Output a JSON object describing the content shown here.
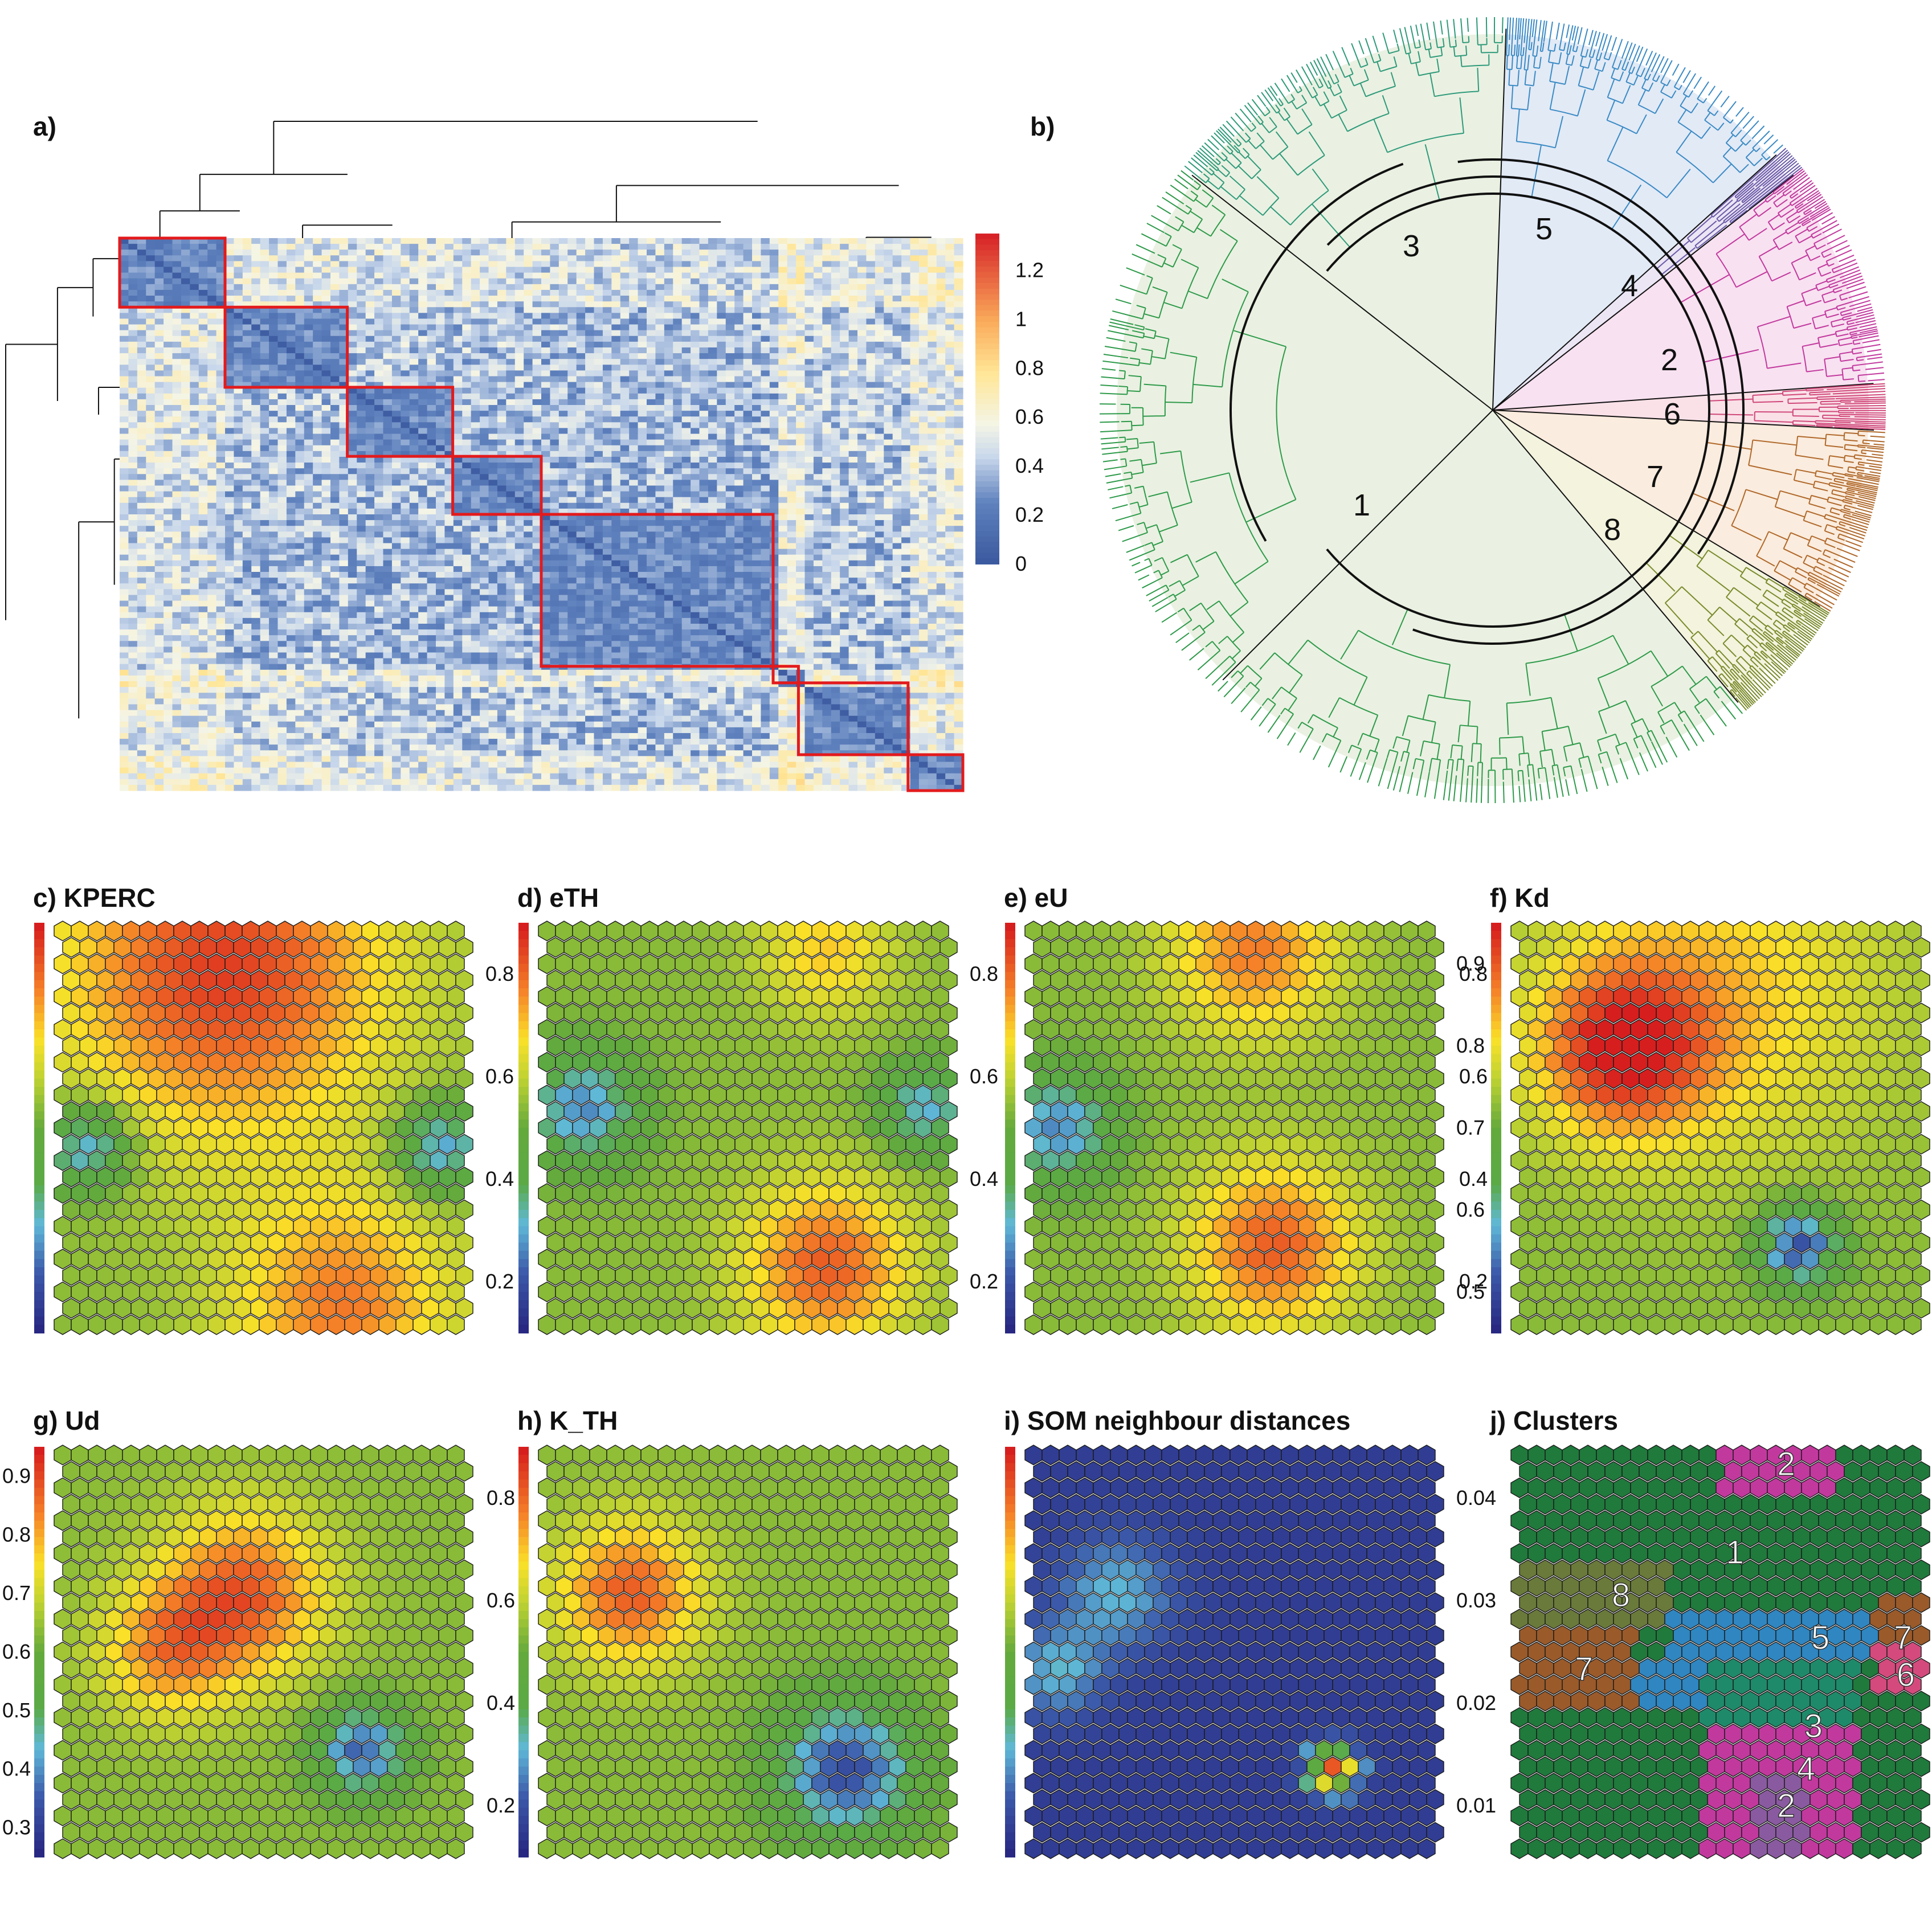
{
  "panels": {
    "a": {
      "label": "a)"
    },
    "b": {
      "label": "b)"
    },
    "c": {
      "label": "c) KPERC"
    },
    "d": {
      "label": "d) eTH"
    },
    "e": {
      "label": "e) eU"
    },
    "f": {
      "label": "f) Kd"
    },
    "g": {
      "label": "g) Ud"
    },
    "h": {
      "label": "h) K_TH"
    },
    "i": {
      "label": "i) SOM neighbour distances"
    },
    "j": {
      "label": "j) Clusters"
    }
  },
  "chart_data": [
    {
      "panel": "a",
      "type": "heatmap",
      "title": "",
      "colorbar": {
        "ticks": [
          "0",
          "0.2",
          "0.4",
          "0.6",
          "0.8",
          "1",
          "1.2"
        ],
        "range": [
          0,
          1.35
        ]
      },
      "cluster_blocks_fraction": [
        [
          0,
          0.125
        ],
        [
          0.125,
          0.27
        ],
        [
          0.27,
          0.395
        ],
        [
          0.395,
          0.5
        ],
        [
          0.5,
          0.775
        ],
        [
          0.775,
          0.805
        ],
        [
          0.805,
          0.935
        ],
        [
          0.935,
          1.0
        ]
      ],
      "block_outline_color": "#e31a1c"
    },
    {
      "panel": "b",
      "type": "dendrogram",
      "cluster_labels": [
        "1",
        "2",
        "3",
        "4",
        "5",
        "6",
        "7",
        "8"
      ],
      "cluster_colors": {
        "1": "#2e9a4a",
        "2": "#c2399e",
        "3": "#2e9a7a",
        "4": "#6a5aa8",
        "5": "#3a8ac4",
        "6": "#d0487a",
        "7": "#b0682a",
        "8": "#7a8a2a"
      }
    },
    {
      "panel": "c",
      "type": "heatmap",
      "variable": "KPERC",
      "colorbar_ticks": [
        "0.2",
        "0.4",
        "0.6",
        "0.8"
      ]
    },
    {
      "panel": "d",
      "type": "heatmap",
      "variable": "eTH",
      "colorbar_ticks": [
        "0.2",
        "0.4",
        "0.6",
        "0.8"
      ]
    },
    {
      "panel": "e",
      "type": "heatmap",
      "variable": "eU",
      "colorbar_ticks": [
        "0.5",
        "0.6",
        "0.7",
        "0.8",
        "0.9"
      ]
    },
    {
      "panel": "f",
      "type": "heatmap",
      "variable": "Kd",
      "colorbar_ticks": [
        "0.2",
        "0.4",
        "0.6",
        "0.8"
      ]
    },
    {
      "panel": "g",
      "type": "heatmap",
      "variable": "Ud",
      "colorbar_ticks": [
        "0.3",
        "0.4",
        "0.5",
        "0.6",
        "0.7",
        "0.8",
        "0.9"
      ]
    },
    {
      "panel": "h",
      "type": "heatmap",
      "variable": "K_TH",
      "colorbar_ticks": [
        "0.2",
        "0.4",
        "0.6",
        "0.8"
      ]
    },
    {
      "panel": "i",
      "type": "heatmap",
      "variable": "SOM neighbour distances",
      "colorbar_ticks": [
        "0.01",
        "0.02",
        "0.03",
        "0.04"
      ]
    },
    {
      "panel": "j",
      "type": "heatmap",
      "variable": "Clusters",
      "cluster_labels": [
        "2",
        "1",
        "8",
        "5",
        "7",
        "7",
        "6",
        "3",
        "4",
        "2"
      ],
      "cluster_colors": {
        "1": "#1f7a3c",
        "2": "#c2399e",
        "3": "#1e8a6a",
        "4": "#8a5aa0",
        "5": "#2f86c0",
        "6": "#d44a7c",
        "7": "#9a5a2a",
        "8": "#6a7a3a"
      }
    }
  ]
}
